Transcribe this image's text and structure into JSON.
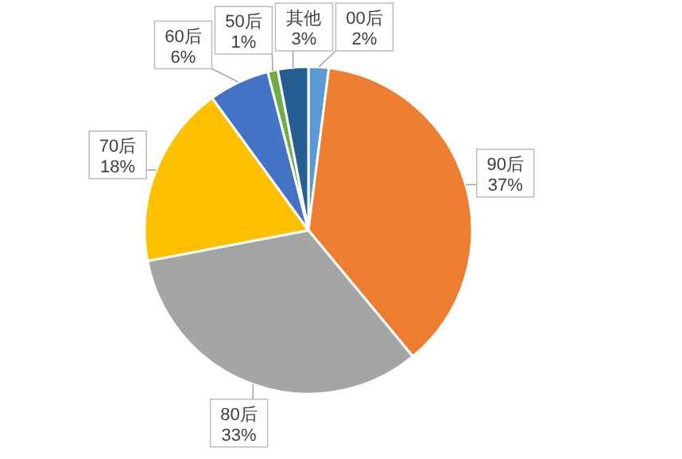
{
  "chart_data": {
    "type": "pie",
    "categories": [
      "00后",
      "90后",
      "80后",
      "70后",
      "60后",
      "50后",
      "其他"
    ],
    "values": [
      2,
      37,
      33,
      18,
      6,
      1,
      3
    ],
    "colors": [
      "#5b9bd5",
      "#ed7d31",
      "#a5a5a5",
      "#ffc000",
      "#4472c4",
      "#70ad47",
      "#255e91"
    ],
    "value_labels": [
      "2%",
      "37%",
      "33%",
      "18%",
      "6%",
      "1%",
      "3%"
    ]
  }
}
